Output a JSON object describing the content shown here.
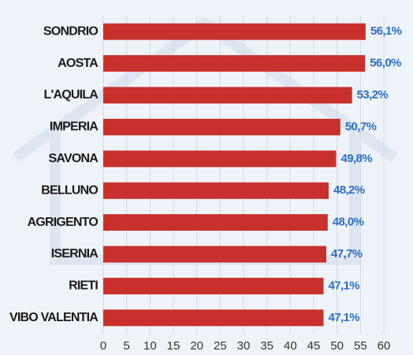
{
  "chart_data": {
    "type": "bar",
    "orientation": "horizontal",
    "categories": [
      "SONDRIO",
      "AOSTA",
      "L'AQUILA",
      "IMPERIA",
      "SAVONA",
      "BELLUNO",
      "AGRIGENTO",
      "ISERNIA",
      "RIETI",
      "VIBO VALENTIA"
    ],
    "values": [
      56.1,
      56.0,
      53.2,
      50.7,
      49.8,
      48.2,
      48.0,
      47.7,
      47.1,
      47.1
    ],
    "value_labels": [
      "56,1%",
      "56,0%",
      "53,2%",
      "50,7%",
      "49,8%",
      "48,2%",
      "48,0%",
      "47,7%",
      "47,1%",
      "47,1%"
    ],
    "color": "#c8302b",
    "xlim": [
      0,
      60
    ],
    "xticks": [
      0,
      5,
      10,
      15,
      20,
      25,
      30,
      35,
      40,
      45,
      50,
      55,
      60
    ],
    "grid": true
  }
}
